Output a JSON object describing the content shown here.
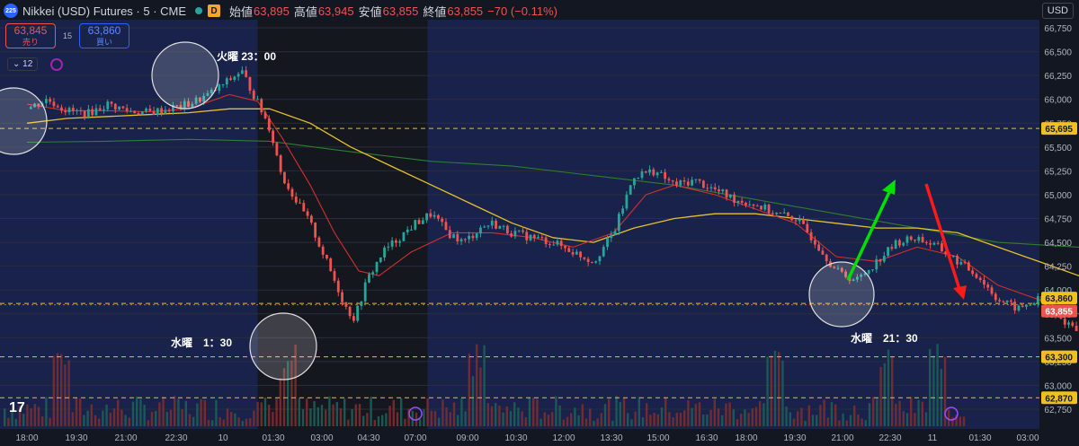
{
  "header": {
    "badge": "225",
    "title": "Nikkei (USD) Futures · 5 · CME",
    "d_badge": "D",
    "open_label": "始値",
    "open": "63,895",
    "high_label": "高値",
    "high": "63,945",
    "low_label": "安値",
    "low": "63,855",
    "close_label": "終値",
    "close": "63,855",
    "change": "−70 (−0.11%)"
  },
  "trade": {
    "sell_price": "63,845",
    "sell_label": "売り",
    "spread": "15",
    "buy_price": "63,860",
    "buy_label": "買い"
  },
  "indicator": {
    "count": "12"
  },
  "currency": "USD",
  "annotations": {
    "tue_2300": "火曜 23：00",
    "wed_0130": "水曜　1：30",
    "wed_2130": "水曜　21：30"
  },
  "colors": {
    "background": "#131722",
    "session_highlight": "#18224a",
    "candle_up": "#26a69a",
    "candle_down": "#ef5350",
    "ma_short": "#d32f2f",
    "ma_mid": "#e6c229",
    "ma_long": "#2e7d32",
    "level_line": "#f0c020",
    "up_arrow": "#00e000",
    "down_arrow": "#ff1a1a"
  },
  "chart_data": {
    "type": "candlestick",
    "interval": "5 min",
    "ylim": [
      62700,
      66800
    ],
    "y_ticks": [
      62750,
      63000,
      63250,
      63500,
      63750,
      64000,
      64250,
      64500,
      64750,
      65000,
      65250,
      65500,
      65750,
      66000,
      66250,
      66500,
      66750
    ],
    "y_tick_labels": [
      "62,750",
      "63,000",
      "63,250",
      "63,500",
      "63,750",
      "64,000",
      "64,250",
      "64,500",
      "64,750",
      "65,000",
      "65,250",
      "65,500",
      "65,750",
      "66,000",
      "66,250",
      "66,500",
      "66,750"
    ],
    "x_ticks": [
      "18:00",
      "19:30",
      "21:00",
      "22:30",
      "10",
      "01:30",
      "03:00",
      "04:30",
      "07:00",
      "09:00",
      "10:30",
      "12:00",
      "13:30",
      "15:00",
      "16:30",
      "18:00",
      "19:30",
      "21:00",
      "22:30",
      "11",
      "01:30",
      "03:00"
    ],
    "horizontal_levels": [
      {
        "value": 65695,
        "label": "65,695"
      },
      {
        "value": 63860,
        "label": "63,860"
      },
      {
        "value": 63855,
        "label": "63,855"
      },
      {
        "value": 63300,
        "label": "63,300"
      },
      {
        "value": 62870,
        "label": "62,870"
      }
    ],
    "price_path": [
      [
        18.0,
        65900
      ],
      [
        18.5,
        66000
      ],
      [
        19.0,
        65880
      ],
      [
        19.5,
        65850
      ],
      [
        20.0,
        65950
      ],
      [
        20.5,
        65880
      ],
      [
        21.0,
        65860
      ],
      [
        21.5,
        65900
      ],
      [
        22.0,
        65950
      ],
      [
        22.5,
        66050
      ],
      [
        23.0,
        66200
      ],
      [
        23.3,
        66300
      ],
      [
        23.6,
        66050
      ],
      [
        24.0,
        65700
      ],
      [
        24.3,
        65200
      ],
      [
        24.7,
        64900
      ],
      [
        25.0,
        64700
      ],
      [
        25.3,
        64400
      ],
      [
        25.6,
        64100
      ],
      [
        25.9,
        63800
      ],
      [
        26.1,
        63700
      ],
      [
        26.4,
        64100
      ],
      [
        26.8,
        64400
      ],
      [
        27.2,
        64550
      ],
      [
        27.6,
        64700
      ],
      [
        28.0,
        64800
      ],
      [
        28.4,
        64600
      ],
      [
        28.8,
        64500
      ],
      [
        29.2,
        64650
      ],
      [
        29.5,
        64700
      ],
      [
        30.0,
        64600
      ],
      [
        30.5,
        64550
      ],
      [
        31.0,
        64500
      ],
      [
        31.5,
        64400
      ],
      [
        32.0,
        64300
      ],
      [
        32.5,
        64600
      ],
      [
        33.0,
        65200
      ],
      [
        33.5,
        65250
      ],
      [
        34.0,
        65100
      ],
      [
        34.5,
        65150
      ],
      [
        35.0,
        65050
      ],
      [
        35.5,
        64950
      ],
      [
        36.0,
        64900
      ],
      [
        36.5,
        64800
      ],
      [
        37.0,
        64750
      ],
      [
        37.5,
        64500
      ],
      [
        38.0,
        64200
      ],
      [
        38.5,
        64100
      ],
      [
        39.0,
        64300
      ],
      [
        39.5,
        64500
      ],
      [
        40.0,
        64550
      ],
      [
        40.5,
        64450
      ],
      [
        41.0,
        64300
      ],
      [
        41.5,
        64150
      ],
      [
        42.0,
        63900
      ],
      [
        42.5,
        63800
      ],
      [
        43.0,
        63900
      ],
      [
        43.5,
        63700
      ],
      [
        44.0,
        63600
      ],
      [
        44.5,
        63600
      ],
      [
        45.0,
        63750
      ],
      [
        45.3,
        64000
      ],
      [
        45.6,
        64500
      ],
      [
        46.0,
        64300
      ],
      [
        46.3,
        64700
      ],
      [
        46.6,
        64800
      ],
      [
        47.0,
        64900
      ],
      [
        47.3,
        64750
      ],
      [
        47.6,
        64400
      ],
      [
        48.0,
        64100
      ],
      [
        48.3,
        63850
      ]
    ],
    "ma_short": [
      [
        18.0,
        65950
      ],
      [
        19.0,
        65880
      ],
      [
        20.0,
        65880
      ],
      [
        21.0,
        65870
      ],
      [
        22.0,
        65900
      ],
      [
        23.0,
        66050
      ],
      [
        23.7,
        65980
      ],
      [
        24.3,
        65600
      ],
      [
        25.0,
        65100
      ],
      [
        25.6,
        64600
      ],
      [
        26.2,
        64200
      ],
      [
        26.7,
        64150
      ],
      [
        27.5,
        64400
      ],
      [
        28.5,
        64600
      ],
      [
        29.5,
        64600
      ],
      [
        30.5,
        64550
      ],
      [
        31.5,
        64450
      ],
      [
        32.5,
        64600
      ],
      [
        33.3,
        65000
      ],
      [
        34.0,
        65100
      ],
      [
        35.0,
        65000
      ],
      [
        36.0,
        64850
      ],
      [
        37.0,
        64700
      ],
      [
        38.0,
        64350
      ],
      [
        39.0,
        64300
      ],
      [
        40.0,
        64450
      ],
      [
        41.0,
        64350
      ],
      [
        42.0,
        64050
      ],
      [
        43.0,
        63900
      ],
      [
        44.0,
        63750
      ],
      [
        45.0,
        63750
      ],
      [
        45.6,
        64050
      ],
      [
        46.3,
        64450
      ],
      [
        47.0,
        64700
      ],
      [
        47.6,
        64550
      ],
      [
        48.3,
        64250
      ]
    ],
    "ma_mid": [
      [
        18.0,
        65750
      ],
      [
        19.0,
        65800
      ],
      [
        20.0,
        65820
      ],
      [
        21.0,
        65840
      ],
      [
        22.0,
        65860
      ],
      [
        23.0,
        65900
      ],
      [
        24.0,
        65900
      ],
      [
        25.0,
        65750
      ],
      [
        26.0,
        65500
      ],
      [
        27.0,
        65300
      ],
      [
        28.0,
        65100
      ],
      [
        29.0,
        64900
      ],
      [
        30.0,
        64700
      ],
      [
        31.0,
        64550
      ],
      [
        32.0,
        64500
      ],
      [
        33.0,
        64650
      ],
      [
        34.0,
        64750
      ],
      [
        35.0,
        64800
      ],
      [
        36.0,
        64800
      ],
      [
        37.0,
        64750
      ],
      [
        38.0,
        64700
      ],
      [
        39.0,
        64650
      ],
      [
        40.0,
        64650
      ],
      [
        41.0,
        64600
      ],
      [
        42.0,
        64450
      ],
      [
        43.0,
        64300
      ],
      [
        44.0,
        64150
      ],
      [
        45.0,
        64050
      ],
      [
        46.0,
        64120
      ],
      [
        47.0,
        64180
      ],
      [
        48.0,
        64150
      ],
      [
        48.3,
        64100
      ]
    ],
    "ma_long": [
      [
        18.0,
        65550
      ],
      [
        20.0,
        65560
      ],
      [
        22.0,
        65580
      ],
      [
        24.0,
        65560
      ],
      [
        26.0,
        65450
      ],
      [
        28.0,
        65350
      ],
      [
        30.0,
        65300
      ],
      [
        32.0,
        65200
      ],
      [
        34.0,
        65100
      ],
      [
        36.0,
        64950
      ],
      [
        38.0,
        64800
      ],
      [
        40.0,
        64650
      ],
      [
        42.0,
        64500
      ],
      [
        44.0,
        64450
      ],
      [
        46.0,
        64450
      ],
      [
        48.0,
        64420
      ]
    ],
    "volume_relative": "bars along bottom; larger spikes near 19:00, 01:30, 09:00, 22:30"
  }
}
